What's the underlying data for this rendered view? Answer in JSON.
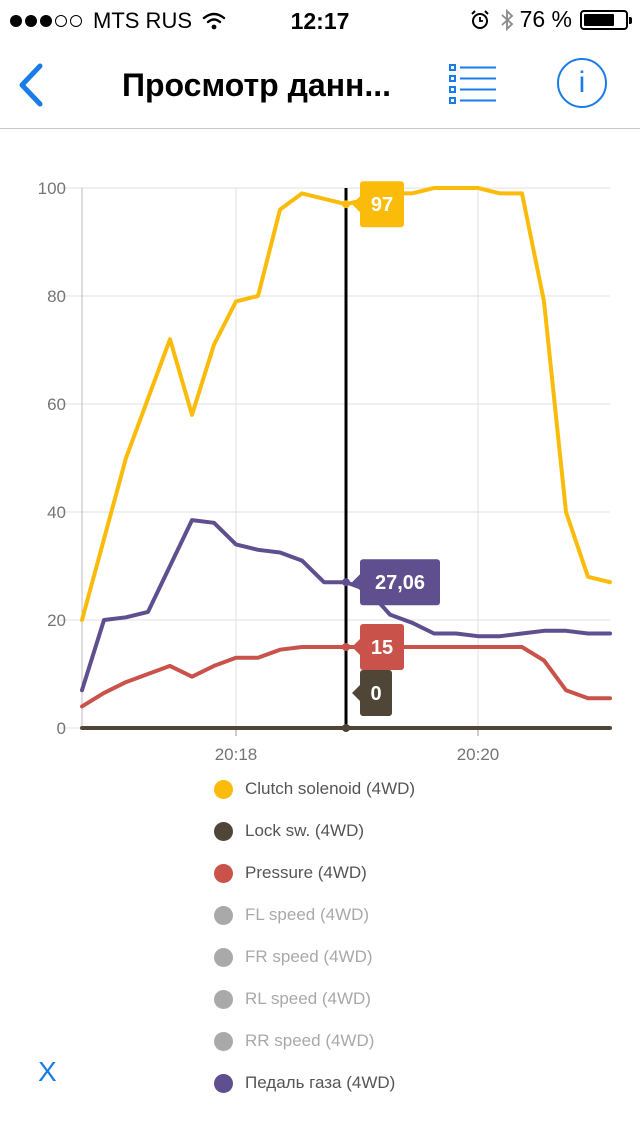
{
  "status_bar": {
    "carrier": "MTS RUS",
    "signal_dots_filled": 3,
    "signal_dots_total": 5,
    "time": "12:17",
    "battery_percent": "76 %",
    "battery_level": 0.76,
    "icons": [
      "wifi-icon",
      "alarm-icon",
      "bluetooth-icon",
      "battery-icon"
    ]
  },
  "nav": {
    "back_icon": "chevron-left-icon",
    "title": "Просмотр данн...",
    "list_icon": "list-icon",
    "info_label": "i",
    "accent_color": "#1a7ce8"
  },
  "chart_data": {
    "type": "line",
    "ylim": [
      0,
      100
    ],
    "yticks": [
      0,
      20,
      40,
      60,
      80,
      100
    ],
    "xticks": [
      {
        "label": "20:18",
        "x": 7
      },
      {
        "label": "20:20",
        "x": 18
      }
    ],
    "xlim": [
      0,
      24
    ],
    "cursor": {
      "x": 12
    },
    "series": [
      {
        "name": "Clutch solenoid (4WD)",
        "color": "#fbbb0b",
        "enabled": true,
        "cursor_value": "97",
        "x": [
          0,
          1,
          2,
          3,
          4,
          5,
          6,
          7,
          8,
          9,
          10,
          11,
          12,
          13,
          14,
          15,
          16,
          17,
          18,
          19,
          20,
          21,
          22,
          23,
          24
        ],
        "y": [
          20,
          35,
          50,
          61,
          72,
          58,
          71,
          79,
          80,
          96,
          99,
          98,
          97,
          98,
          99,
          99,
          100,
          100,
          100,
          99,
          99,
          79,
          40,
          28,
          27
        ]
      },
      {
        "name": "Lock sw. (4WD)",
        "color": "#4f4638",
        "enabled": true,
        "cursor_value": "0",
        "x": [
          0,
          24
        ],
        "y": [
          0,
          0
        ]
      },
      {
        "name": "Pressure (4WD)",
        "color": "#c9534b",
        "enabled": true,
        "cursor_value": "15",
        "x": [
          0,
          1,
          2,
          3,
          4,
          5,
          6,
          7,
          8,
          9,
          10,
          11,
          12,
          13,
          14,
          15,
          16,
          17,
          18,
          19,
          20,
          21,
          22,
          23,
          24
        ],
        "y": [
          4,
          6.5,
          8.5,
          10,
          11.5,
          9.5,
          11.5,
          13,
          13,
          14.5,
          15,
          15,
          15,
          15,
          15,
          15,
          15,
          15,
          15,
          15,
          15,
          12.5,
          7,
          5.5,
          5.5
        ]
      },
      {
        "name": "FL speed (4WD)",
        "color": "#a9a9a9",
        "enabled": false
      },
      {
        "name": "FR speed (4WD)",
        "color": "#a9a9a9",
        "enabled": false
      },
      {
        "name": "RL speed (4WD)",
        "color": "#a9a9a9",
        "enabled": false
      },
      {
        "name": "RR speed (4WD)",
        "color": "#a9a9a9",
        "enabled": false
      },
      {
        "name": "Педаль газа (4WD)",
        "color": "#5f4f8f",
        "enabled": true,
        "cursor_value": "27,06",
        "x": [
          0,
          1,
          2,
          3,
          4,
          5,
          6,
          7,
          8,
          9,
          10,
          11,
          12,
          13,
          14,
          15,
          16,
          17,
          18,
          19,
          20,
          21,
          22,
          23,
          24
        ],
        "y": [
          7,
          20,
          20.5,
          21.5,
          30,
          38.5,
          38,
          34,
          33,
          32.5,
          31,
          27,
          27,
          25.5,
          21,
          19.5,
          17.5,
          17.5,
          17,
          17,
          17.5,
          18,
          18,
          17.5,
          17.5
        ]
      }
    ]
  },
  "close_label": "X"
}
